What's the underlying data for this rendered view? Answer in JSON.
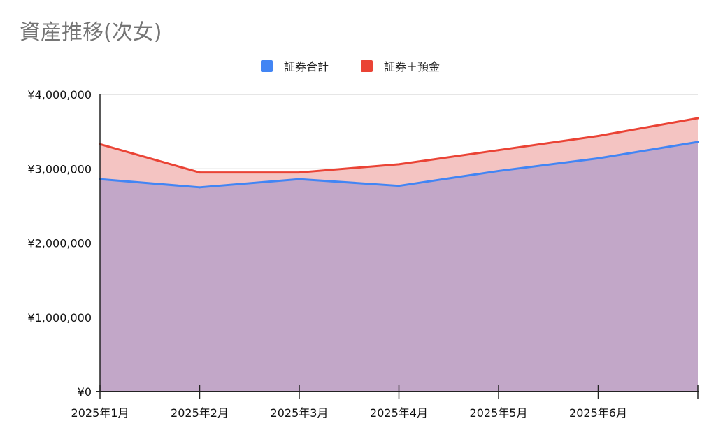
{
  "chart_data": {
    "type": "area",
    "title": "資産推移(次女)",
    "categories": [
      "2025年1月",
      "2025年2月",
      "2025年3月",
      "2025年4月",
      "2025年5月",
      "2025年6月",
      ""
    ],
    "y_ticks": [
      "¥0",
      "¥1,000,000",
      "¥2,000,000",
      "¥3,000,000",
      "¥4,000,000"
    ],
    "ylim": [
      0,
      4000000
    ],
    "grid": true,
    "legend_position": "top",
    "series": [
      {
        "name": "証券合計",
        "color": "#4285f4",
        "fill": "#c2a7c8",
        "values": [
          2860000,
          2750000,
          2860000,
          2770000,
          2970000,
          3140000,
          3360000
        ]
      },
      {
        "name": "証券＋預金",
        "color": "#ea4335",
        "fill": "#f4c4c2",
        "values": [
          3330000,
          2950000,
          2950000,
          3060000,
          3250000,
          3440000,
          3680000
        ]
      }
    ]
  }
}
